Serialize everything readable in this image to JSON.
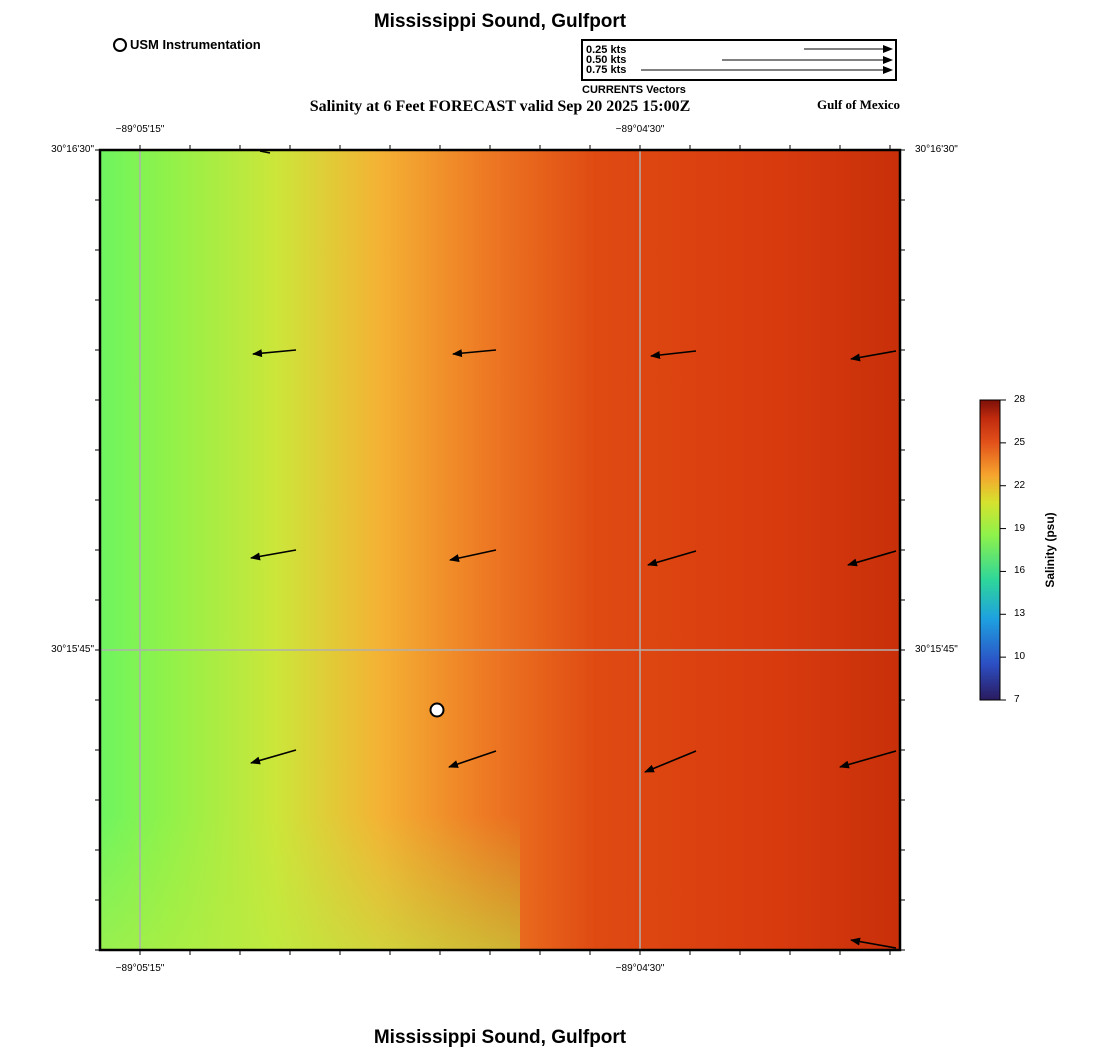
{
  "title": "Mississippi Sound, Gulfport",
  "footer_title": "Mississippi Sound, Gulfport",
  "subtitle": "Salinity at 6 Feet FORECAST valid Sep 20 2025 15:00Z",
  "region_label": "Gulf of Mexico",
  "legend": {
    "label": "USM Instrumentation"
  },
  "vector_key": {
    "caption": "CURRENTS Vectors",
    "entries": [
      {
        "label": "0.25 kts",
        "speed_kts": 0.25
      },
      {
        "label": "0.50 kts",
        "speed_kts": 0.5
      },
      {
        "label": "0.75 kts",
        "speed_kts": 0.75
      }
    ]
  },
  "axes": {
    "lon_ticks": [
      "−89°05'15\"",
      "−89°04'30\""
    ],
    "lat_ticks": [
      "30°16'30\"",
      "30°15'45\""
    ]
  },
  "colorbar": {
    "title": "Salinity (psu)",
    "min": 7,
    "max": 28,
    "ticks": [
      7,
      10,
      13,
      16,
      19,
      22,
      25,
      28
    ],
    "colors": [
      "#2a1a5e",
      "#2c4fc4",
      "#1ea0e0",
      "#2ed69a",
      "#8ef24a",
      "#d6e22e",
      "#f6a42e",
      "#e2501a",
      "#c02a0e",
      "#7a1008"
    ]
  },
  "station": {
    "name": "USM Instrumentation"
  }
}
